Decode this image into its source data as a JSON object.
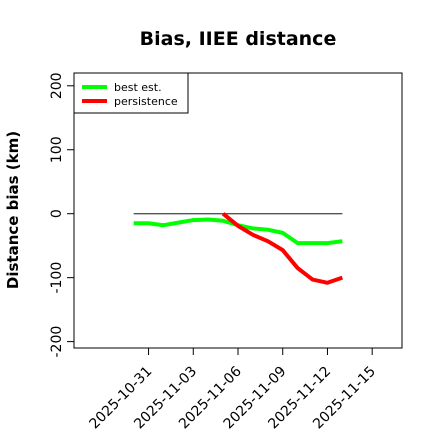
{
  "chart_data": {
    "type": "line",
    "title": "Bias, IIEE distance",
    "xlabel": "",
    "ylabel": "Distance bias (km)",
    "x_axis": {
      "type": "date",
      "range": [
        "2025-10-26",
        "2025-11-17"
      ],
      "tick_values": [
        "2025-10-31",
        "2025-11-03",
        "2025-11-06",
        "2025-11-09",
        "2025-11-12",
        "2025-11-15"
      ],
      "tick_labels": [
        "2025-10-31",
        "2025-11-03",
        "2025-11-06",
        "2025-11-09",
        "2025-11-12",
        "2025-11-15"
      ]
    },
    "ylim": [
      -210,
      220
    ],
    "y_ticks": [
      -200,
      -100,
      0,
      100,
      200
    ],
    "y_tick_labels": [
      "-200",
      "-100",
      "0",
      "100",
      "200"
    ],
    "reference_line": {
      "y": 0,
      "from": "2025-10-30",
      "to": "2025-11-13",
      "color": "#555555"
    },
    "legend": {
      "position": "top-left"
    },
    "grid": false,
    "series": [
      {
        "name": "best est.",
        "color": "#00ff00",
        "points": [
          {
            "x": "2025-10-30",
            "y": -15
          },
          {
            "x": "2025-10-31",
            "y": -15
          },
          {
            "x": "2025-11-01",
            "y": -18
          },
          {
            "x": "2025-11-02",
            "y": -14
          },
          {
            "x": "2025-11-03",
            "y": -10
          },
          {
            "x": "2025-11-04",
            "y": -9
          },
          {
            "x": "2025-11-05",
            "y": -11
          },
          {
            "x": "2025-11-06",
            "y": -18
          },
          {
            "x": "2025-11-07",
            "y": -23
          },
          {
            "x": "2025-11-08",
            "y": -25
          },
          {
            "x": "2025-11-09",
            "y": -30
          },
          {
            "x": "2025-11-10",
            "y": -46
          },
          {
            "x": "2025-11-11",
            "y": -46
          },
          {
            "x": "2025-11-12",
            "y": -46
          },
          {
            "x": "2025-11-13",
            "y": -43
          }
        ]
      },
      {
        "name": "persistence",
        "color": "#ff0000",
        "points": [
          {
            "x": "2025-11-05",
            "y": 0
          },
          {
            "x": "2025-11-06",
            "y": -19
          },
          {
            "x": "2025-11-07",
            "y": -33
          },
          {
            "x": "2025-11-08",
            "y": -43
          },
          {
            "x": "2025-11-09",
            "y": -57
          },
          {
            "x": "2025-11-10",
            "y": -85
          },
          {
            "x": "2025-11-11",
            "y": -103
          },
          {
            "x": "2025-11-12",
            "y": -108
          },
          {
            "x": "2025-11-13",
            "y": -100
          }
        ]
      }
    ]
  }
}
